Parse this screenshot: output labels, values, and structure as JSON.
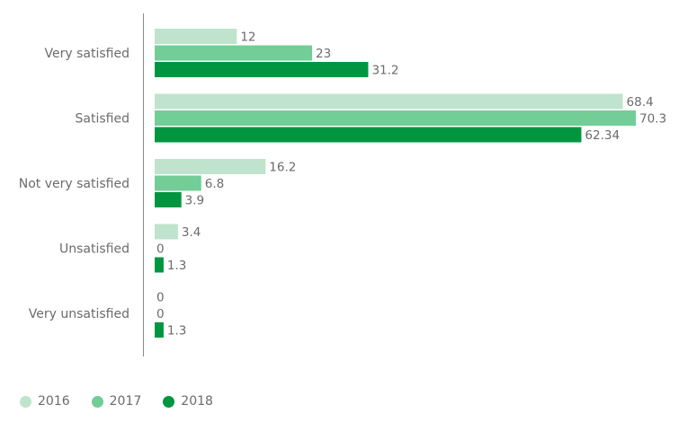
{
  "chart_data": {
    "type": "bar",
    "orientation": "horizontal",
    "categories": [
      "Very satisfied",
      "Satisfied",
      "Not very satisfied",
      "Unsatisfied",
      "Very unsatisfied"
    ],
    "series": [
      {
        "name": "2016",
        "color": "#bfe3cc",
        "values": [
          12,
          68.4,
          16.2,
          3.4,
          0
        ],
        "labels": [
          "12",
          "68.4",
          "16.2",
          "3.4",
          "0"
        ]
      },
      {
        "name": "2017",
        "color": "#72cd96",
        "values": [
          23,
          70.3,
          6.8,
          0,
          0
        ],
        "labels": [
          "23",
          "70.3",
          "6.8",
          "0",
          "0"
        ]
      },
      {
        "name": "2018",
        "color": "#00963f",
        "values": [
          31.2,
          62.34,
          3.9,
          1.3,
          1.3
        ],
        "labels": [
          "31.2",
          "62.34",
          "3.9",
          "1.3",
          "1.3"
        ]
      }
    ],
    "xlim": [
      0,
      70.3
    ],
    "grid": false,
    "legend_position": "bottom-left"
  }
}
